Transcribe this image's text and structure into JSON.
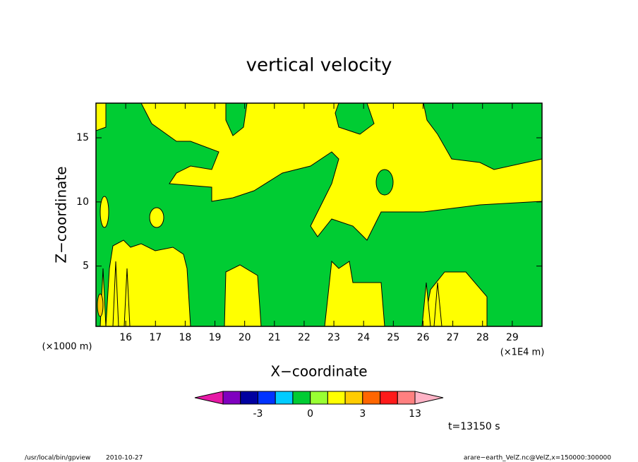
{
  "chart_data": {
    "type": "contour",
    "title": "vertical velocity",
    "x_label": "X−coordinate",
    "y_label": "Z−coordinate",
    "x_unit": "(×1E4 m)",
    "y_unit": "(×1000 m)",
    "time_label": "t=13150 s",
    "footer_left": "/usr/local/bin/gpview",
    "footer_date": "2010-10-27",
    "footer_right": "arare−earth_VelZ.nc@VelZ,x=150000:300000",
    "xlim": [
      15,
      30
    ],
    "xticks": [
      16,
      17,
      18,
      19,
      20,
      21,
      22,
      23,
      24,
      25,
      26,
      27,
      28,
      29
    ],
    "ylim": [
      0.3,
      17.7
    ],
    "yticks": [
      5,
      10,
      15
    ],
    "colorbar": {
      "levels": [
        -10,
        -5,
        -3,
        -2,
        -1,
        0,
        1,
        2,
        3,
        5,
        10,
        13
      ],
      "ticks": [
        -3,
        0,
        3,
        13
      ],
      "colors": [
        "#7f00bf",
        "#0000a0",
        "#0033ff",
        "#00ccff",
        "#00cc33",
        "#99ff33",
        "#ffff00",
        "#ffcc00",
        "#ff6600",
        "#ff1a1a",
        "#ff8080"
      ],
      "low_color": "#e619a6",
      "high_color": "#ffb3c6"
    }
  }
}
